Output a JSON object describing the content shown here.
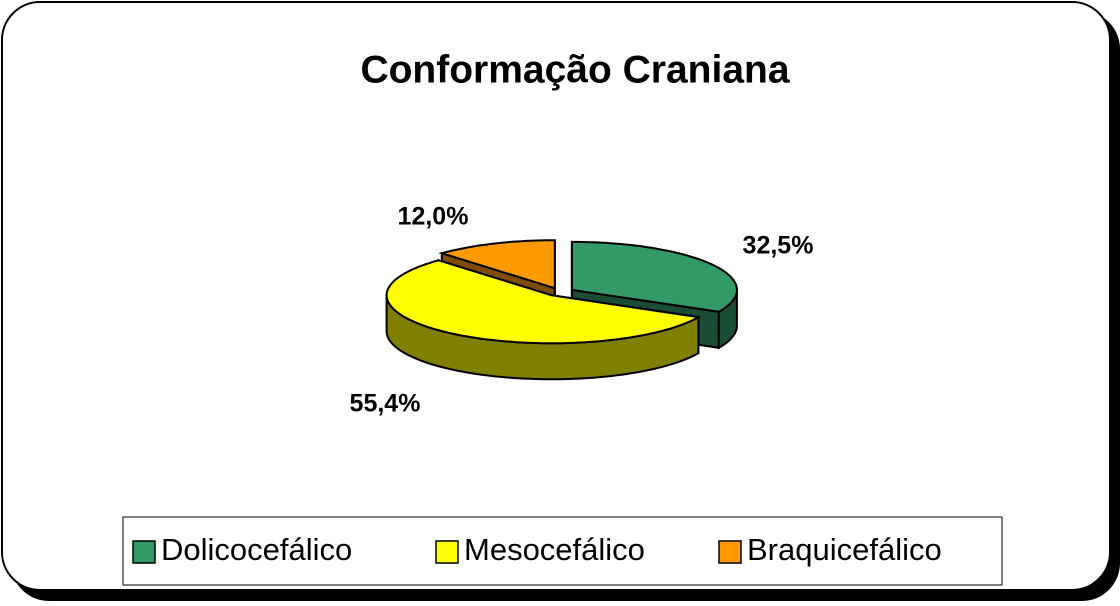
{
  "chart_data": {
    "type": "pie",
    "title": "Conformação Craniana",
    "categories": [
      "Dolicocefálico",
      "Mesocefálico",
      "Braquicefálico"
    ],
    "values": [
      32.5,
      55.4,
      12.0
    ],
    "value_labels": [
      "32,5%",
      "55,4%",
      "12,0%"
    ],
    "colors": [
      "#339966",
      "#ffff00",
      "#ff9900"
    ]
  }
}
